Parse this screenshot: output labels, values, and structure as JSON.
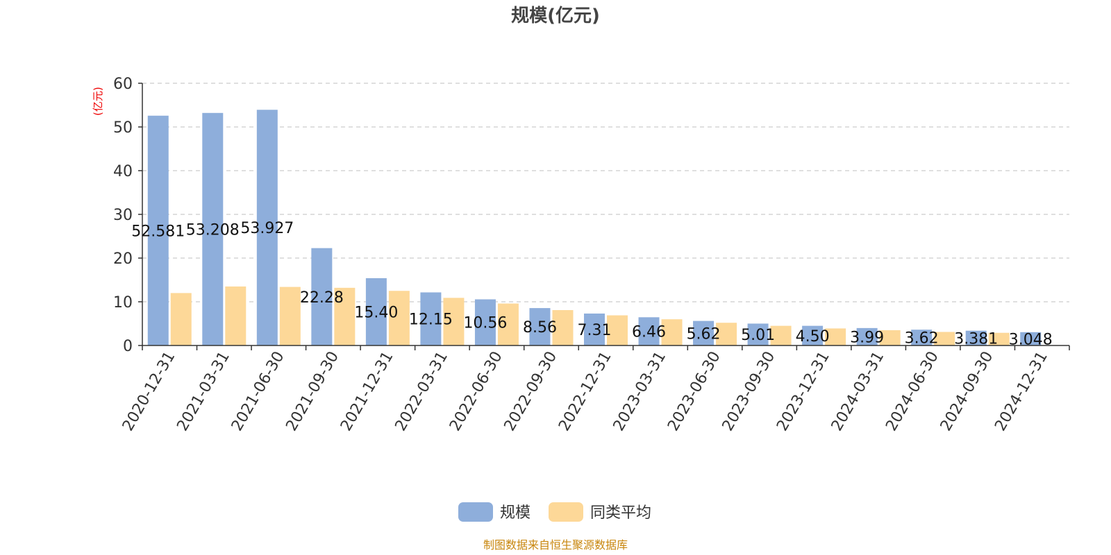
{
  "chart_data": {
    "type": "bar",
    "title": "规模(亿元)",
    "ylabel": "(亿元)",
    "xlabel": "",
    "ylim": [
      0,
      60
    ],
    "yticks": [
      0,
      10,
      20,
      30,
      40,
      50,
      60
    ],
    "grid": true,
    "legend_position": "bottom-center",
    "categories": [
      "2020-12-31",
      "2021-03-31",
      "2021-06-30",
      "2021-09-30",
      "2021-12-31",
      "2022-03-31",
      "2022-06-30",
      "2022-09-30",
      "2022-12-31",
      "2023-03-31",
      "2023-06-30",
      "2023-09-30",
      "2023-12-31",
      "2024-03-31",
      "2024-06-30",
      "2024-09-30",
      "2024-12-31"
    ],
    "series": [
      {
        "name": "规模",
        "color": "#8eaedb",
        "values": [
          52.581,
          53.208,
          53.927,
          22.28,
          15.4,
          12.15,
          10.56,
          8.56,
          7.31,
          6.46,
          5.62,
          5.01,
          4.5,
          3.99,
          3.62,
          3.381,
          3.048
        ],
        "labels": [
          "52.581",
          "53.208",
          "53.927",
          "22.28",
          "15.40",
          "12.15",
          "10.56",
          "8.56",
          "7.31",
          "6.46",
          "5.62",
          "5.01",
          "4.50",
          "3.99",
          "3.62",
          "3.381",
          "3.048"
        ]
      },
      {
        "name": "同类平均",
        "color": "#fdd898",
        "values": [
          12.0,
          13.5,
          13.4,
          13.2,
          12.5,
          10.9,
          9.6,
          8.1,
          6.9,
          6.0,
          5.2,
          4.5,
          3.9,
          3.5,
          3.1,
          2.9,
          null
        ]
      }
    ]
  },
  "source": {
    "text": "制图数据来自恒生聚源数据库",
    "color": "#c8860d"
  },
  "colors": {
    "unit_label": "#ee0000",
    "axis": "#333333",
    "grid": "#cccccc"
  }
}
